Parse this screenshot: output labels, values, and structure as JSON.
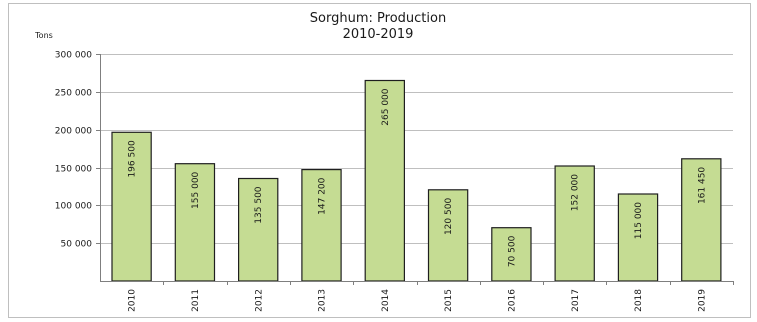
{
  "chart_data": {
    "type": "bar",
    "title": "Sorghum: Production",
    "subtitle": "2010-2019",
    "ylabel": "Tons",
    "xlabel": "",
    "categories": [
      "2010",
      "2011",
      "2012",
      "2013",
      "2014",
      "2015",
      "2016",
      "2017",
      "2018",
      "2019"
    ],
    "values": [
      196500,
      155000,
      135500,
      147200,
      265000,
      120500,
      70500,
      152000,
      115000,
      161450
    ],
    "data_labels": [
      "196 500",
      "155 000",
      "135 500",
      "147 200",
      "265 000",
      "120 500",
      "70 500",
      "152 000",
      "115 000",
      "161 450"
    ],
    "ylim": [
      0,
      300000
    ],
    "yticks": [
      50000,
      100000,
      150000,
      200000,
      250000,
      300000
    ],
    "ytick_labels": [
      "50 000",
      "100 000",
      "150 000",
      "200 000",
      "250 000",
      "300 000"
    ],
    "grid": true,
    "legend": "none",
    "colors": {
      "bar_fill": "#c5dc93",
      "bar_stroke": "#1f1f1f",
      "grid": "#bfbfbf",
      "axis": "#7f7f7f",
      "frame": "#bfbfbf",
      "text": "#1a1a1a"
    }
  }
}
